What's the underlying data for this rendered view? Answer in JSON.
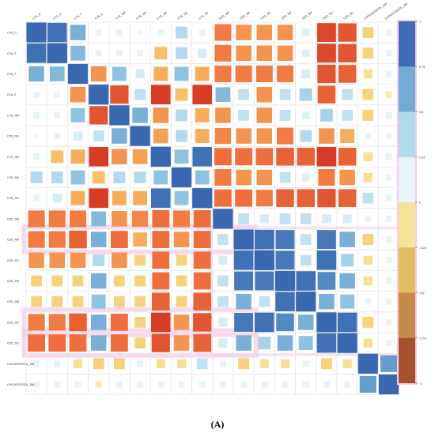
{
  "panel_label": "(A)",
  "chart_data": {
    "type": "heatmap",
    "title": "",
    "labels": [
      "CYA_D",
      "CYA_S",
      "CYA_T",
      "CYA_E",
      "CYE_NM",
      "CYE_NO",
      "CYE_SM",
      "CYE_SM",
      "CYE_SO",
      "CED_SM",
      "CED_AM",
      "CED_SO",
      "CED_SM",
      "CED_SM",
      "CED_SO",
      "CED_SO",
      "CHOLESTEROL_SM",
      "CHOLESTEROL_SM"
    ],
    "matrix": [
      [
        1.0,
        0.95,
        0.6,
        0.1,
        0.1,
        0.05,
        0.1,
        0.35,
        0.1,
        -0.7,
        -0.6,
        -0.6,
        -0.6,
        0.15,
        -0.9,
        -0.85,
        -0.3,
        0.1
      ],
      [
        0.95,
        1.0,
        0.55,
        0.1,
        0.1,
        0.1,
        -0.4,
        0.35,
        0.2,
        -0.7,
        -0.6,
        -0.6,
        -0.6,
        0.15,
        -0.9,
        -0.85,
        -0.3,
        0.1
      ],
      [
        0.6,
        0.55,
        1.0,
        -0.6,
        0.5,
        0.2,
        -0.5,
        0.5,
        -0.5,
        -0.7,
        -0.7,
        -0.7,
        -0.7,
        0.2,
        -0.85,
        -0.8,
        -0.2,
        0.1
      ],
      [
        0.1,
        0.1,
        -0.6,
        1.0,
        -0.85,
        0.3,
        -0.95,
        -0.4,
        -0.95,
        0.55,
        0.3,
        -0.6,
        0.3,
        0.4,
        -0.8,
        0.3,
        -0.3,
        -0.1
      ],
      [
        0.1,
        0.1,
        0.5,
        -0.85,
        1.0,
        0.6,
        -0.6,
        0.35,
        -0.5,
        -0.6,
        0.3,
        -0.6,
        0.3,
        0.15,
        0.4,
        0.3,
        -0.3,
        0.1
      ],
      [
        0.05,
        0.1,
        0.2,
        0.3,
        0.6,
        1.0,
        -0.55,
        0.35,
        -0.5,
        -0.65,
        -0.6,
        -0.6,
        -0.7,
        0.35,
        -0.6,
        -0.5,
        0.1,
        0.1
      ],
      [
        0.1,
        -0.4,
        -0.5,
        -0.95,
        -0.6,
        -0.55,
        1.0,
        0.5,
        0.95,
        -0.75,
        -0.75,
        -0.75,
        -0.8,
        -0.8,
        -0.95,
        -0.8,
        -0.2,
        0.1
      ],
      [
        0.35,
        0.35,
        0.5,
        -0.4,
        0.35,
        0.35,
        0.5,
        1.0,
        0.5,
        -0.7,
        -0.6,
        -0.6,
        0.3,
        0.15,
        -0.7,
        -0.6,
        -0.2,
        0.1
      ],
      [
        0.1,
        0.2,
        -0.5,
        -0.95,
        -0.5,
        -0.5,
        0.95,
        0.5,
        1.0,
        -0.75,
        -0.75,
        -0.7,
        -0.8,
        -0.8,
        -0.85,
        -0.8,
        0.3,
        0.1
      ],
      [
        -0.7,
        -0.7,
        -0.7,
        0.55,
        -0.6,
        -0.65,
        -0.75,
        -0.7,
        -0.75,
        1.0,
        0.3,
        0.2,
        0.3,
        0.3,
        0.2,
        0.2,
        0.1,
        0.1
      ],
      [
        -0.7,
        -0.7,
        -0.8,
        0.6,
        -0.75,
        -0.5,
        -0.75,
        -0.6,
        -0.75,
        0.3,
        1.0,
        0.95,
        0.9,
        0.3,
        0.9,
        0.6,
        -0.3,
        0.1
      ],
      [
        -0.6,
        -0.6,
        -0.6,
        0.35,
        -0.6,
        -0.3,
        -0.75,
        -0.3,
        -0.75,
        0.2,
        0.95,
        1.0,
        0.9,
        0.3,
        0.95,
        0.4,
        -0.2,
        0.1
      ],
      [
        -0.3,
        -0.3,
        -0.3,
        0.6,
        -0.3,
        -0.3,
        -0.75,
        -0.3,
        -0.75,
        0.3,
        0.9,
        0.9,
        1.0,
        0.95,
        0.8,
        0.6,
        -0.2,
        0.1
      ],
      [
        -0.3,
        -0.3,
        -0.3,
        0.5,
        -0.3,
        -0.3,
        -0.8,
        -0.3,
        -0.8,
        0.3,
        0.6,
        0.3,
        0.95,
        1.0,
        0.6,
        0.5,
        0.1,
        0.1
      ],
      [
        -0.7,
        -0.7,
        -0.8,
        0.6,
        -0.75,
        -0.3,
        -0.95,
        -0.6,
        -0.85,
        0.2,
        0.9,
        0.95,
        0.8,
        0.6,
        1.0,
        0.95,
        -0.3,
        0.1
      ],
      [
        -0.75,
        -0.75,
        -0.75,
        0.6,
        -0.75,
        -0.3,
        -0.85,
        -0.6,
        -0.8,
        0.2,
        0.6,
        0.4,
        0.6,
        0.5,
        0.95,
        1.0,
        -0.2,
        0.1
      ],
      [
        0.1,
        0.1,
        -0.2,
        -0.3,
        -0.3,
        0.1,
        -0.2,
        -0.2,
        0.3,
        0.1,
        -0.3,
        -0.2,
        -0.2,
        0.1,
        -0.3,
        -0.2,
        1.0,
        0.7
      ],
      [
        0.1,
        0.1,
        0.1,
        -0.1,
        0.1,
        0.1,
        0.1,
        0.1,
        0.1,
        0.1,
        0.1,
        0.1,
        0.1,
        0.1,
        0.1,
        0.1,
        0.7,
        1.0
      ]
    ],
    "colorbar": {
      "ticks": [
        "1",
        "0.75",
        "0.5",
        "0.25",
        "0",
        "-0.25",
        "-0.5",
        "-0.75",
        "-1"
      ],
      "colors": [
        "#3d6db5",
        "#74abd6",
        "#b0dbeb",
        "#e8f4fa",
        "#f6e39a",
        "#e0bc62",
        "#c58a4a",
        "#a4522c"
      ]
    },
    "highlight_color": "#f8c9ea"
  }
}
